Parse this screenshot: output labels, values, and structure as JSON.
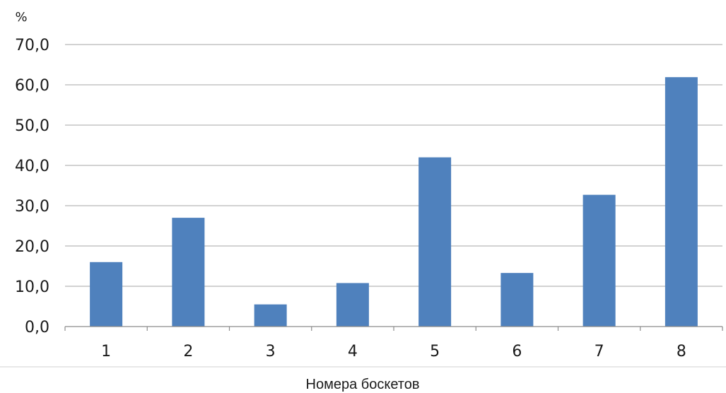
{
  "chart_data": {
    "type": "bar",
    "categories": [
      "1",
      "2",
      "3",
      "4",
      "5",
      "6",
      "7",
      "8"
    ],
    "values": [
      16.0,
      27.0,
      5.5,
      10.8,
      42.0,
      13.3,
      32.7,
      61.9
    ],
    "ylabel": "%",
    "xlabel": "Номера боскетов",
    "ylim": [
      0,
      70
    ],
    "y_ticks": [
      "0,0",
      "10,0",
      "20,0",
      "30,0",
      "40,0",
      "50,0",
      "60,0",
      "70,0"
    ],
    "grid": true,
    "legend": "none",
    "bar_color": "#4f81bd",
    "grid_color": "#a6a6a6"
  }
}
